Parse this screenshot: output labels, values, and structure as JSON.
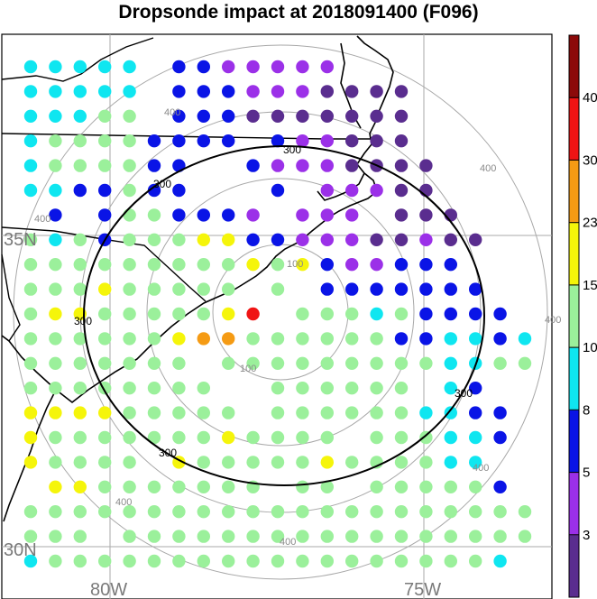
{
  "title": "Dropsonde impact at 2018091400 (F096)",
  "map": {
    "lat_labels": [
      "35N",
      "30N"
    ],
    "lon_labels": [
      "80W",
      "75W"
    ],
    "ring_labels": [
      "100",
      "100",
      "400",
      "400",
      "400",
      "400",
      "400",
      "400",
      "400"
    ],
    "contour_labels": [
      "300",
      "300",
      "300",
      "300",
      "300"
    ]
  },
  "colorbar": {
    "colors": [
      "#5a2d8f",
      "#9b30e8",
      "#0a14e6",
      "#0fe6f0",
      "#9bf09b",
      "#f5f50a",
      "#f59b14",
      "#f01414",
      "#8c0a0a"
    ],
    "labels": [
      "3",
      "5",
      "8",
      "10",
      "15",
      "23",
      "30",
      "40"
    ]
  },
  "chart_data": {
    "type": "scatter",
    "title": "Dropsonde impact at 2018091400 (F096)",
    "columns": 20,
    "rows": 21,
    "color_levels": [
      "#5a2d8f",
      "#9b30e8",
      "#0a14e6",
      "#0fe6f0",
      "#9bf09b",
      "#f5f50a",
      "#f59b14",
      "#f01414",
      "#8c0a0a"
    ],
    "category_grid": [
      "33333.2211111....",
      "33333.2221110000",
      "33344.2220000000",
      "344442222.211000",
      "3444422..21110000",
      "3322422...2.11100",
      ".2.2442221.111.000",
      "4342444552211100100",
      "444444444545211222",
      "444544444.4.2222222",
      "4554444457.444342222",
      "444444566444444223323",
      "4444444.44444444433442",
      "44444444..444444.32",
      "555544444.4444443322",
      "5444444454444.444332",
      "54444.5444445444433",
      ".554444444.44.444442",
      "444444444444444444444",
      "444.444444444444444444",
      "34444444444444444443"
    ]
  }
}
